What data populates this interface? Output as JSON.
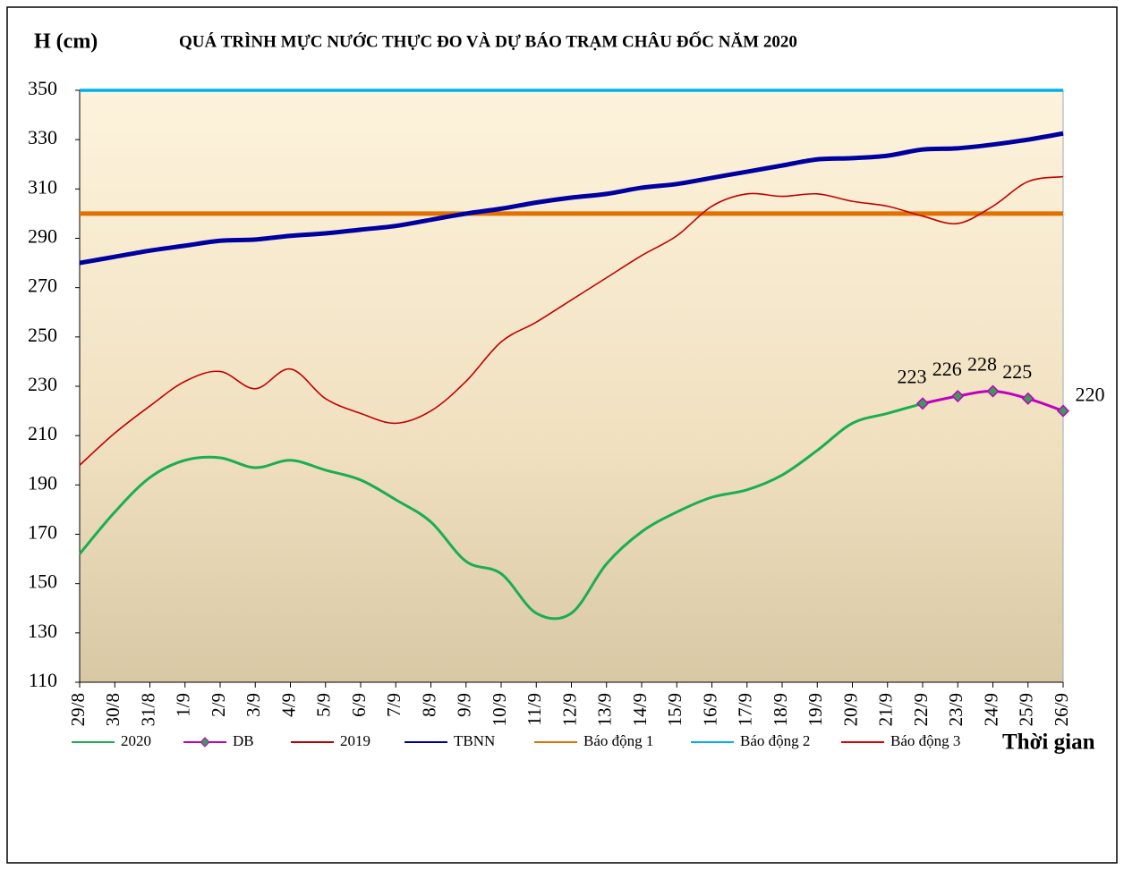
{
  "chart_data": {
    "type": "line",
    "title": "QUÁ TRÌNH MỰC NƯỚC THỰC ĐO VÀ DỰ BÁO TRẠM CHÂU ĐỐC NĂM 2020",
    "y_label": "H (cm)",
    "x_label": "Thời gian",
    "categories": [
      "29/8",
      "30/8",
      "31/8",
      "1/9",
      "2/9",
      "3/9",
      "4/9",
      "5/9",
      "6/9",
      "7/9",
      "8/9",
      "9/9",
      "10/9",
      "11/9",
      "12/9",
      "13/9",
      "14/9",
      "15/9",
      "16/9",
      "17/9",
      "18/9",
      "19/9",
      "20/9",
      "21/9",
      "22/9",
      "23/9",
      "24/9",
      "25/9",
      "26/9"
    ],
    "ylim": [
      110,
      350
    ],
    "yticks": [
      110,
      130,
      150,
      170,
      190,
      210,
      230,
      250,
      270,
      290,
      310,
      330,
      350
    ],
    "series": [
      {
        "name": "2020",
        "color": "#1aae50",
        "values": [
          162,
          179,
          193,
          200,
          201,
          197,
          200,
          196,
          192,
          184,
          175,
          159,
          154,
          138,
          138,
          158,
          171,
          179,
          185,
          188,
          194,
          204,
          215,
          219,
          223,
          null,
          null,
          null,
          null
        ]
      },
      {
        "name": "DB",
        "color": "#c000c0",
        "values": [
          null,
          null,
          null,
          null,
          null,
          null,
          null,
          null,
          null,
          null,
          null,
          null,
          null,
          null,
          null,
          null,
          null,
          null,
          null,
          null,
          null,
          null,
          null,
          null,
          223,
          226,
          228,
          225,
          220
        ],
        "data_labels": true
      },
      {
        "name": "2019",
        "color": "#c00000",
        "values": [
          198,
          211,
          222,
          232,
          236,
          229,
          237,
          225,
          219,
          215,
          220,
          232,
          248,
          256,
          265,
          274,
          283,
          291,
          303,
          308,
          307,
          308,
          305,
          303,
          299,
          296,
          303,
          313,
          315
        ]
      },
      {
        "name": "TBNN",
        "color": "#0000a0",
        "values": [
          280,
          282.5,
          285,
          287,
          289,
          289.5,
          291,
          292,
          293.5,
          295,
          297.5,
          300,
          302,
          304.5,
          306.5,
          308,
          310.5,
          312,
          314.5,
          317,
          319.5,
          322,
          322.5,
          323.5,
          326,
          326.5,
          328,
          330,
          332.5
        ]
      },
      {
        "name": "Báo động 1",
        "color": "#e07000",
        "values": [
          300,
          300,
          300,
          300,
          300,
          300,
          300,
          300,
          300,
          300,
          300,
          300,
          300,
          300,
          300,
          300,
          300,
          300,
          300,
          300,
          300,
          300,
          300,
          300,
          300,
          300,
          300,
          300,
          300
        ]
      },
      {
        "name": "Báo động 2",
        "color": "#00b0f0",
        "values": [
          350,
          350,
          350,
          350,
          350,
          350,
          350,
          350,
          350,
          350,
          350,
          350,
          350,
          350,
          350,
          350,
          350,
          350,
          350,
          350,
          350,
          350,
          350,
          350,
          350,
          350,
          350,
          350,
          350
        ]
      },
      {
        "name": "Báo động 3",
        "color": "#e00000",
        "values": [
          null,
          null,
          null,
          null,
          null,
          null,
          null,
          null,
          null,
          null,
          null,
          null,
          null,
          null,
          null,
          null,
          null,
          null,
          null,
          null,
          null,
          null,
          null,
          null,
          null,
          null,
          null,
          null,
          null
        ]
      }
    ]
  }
}
